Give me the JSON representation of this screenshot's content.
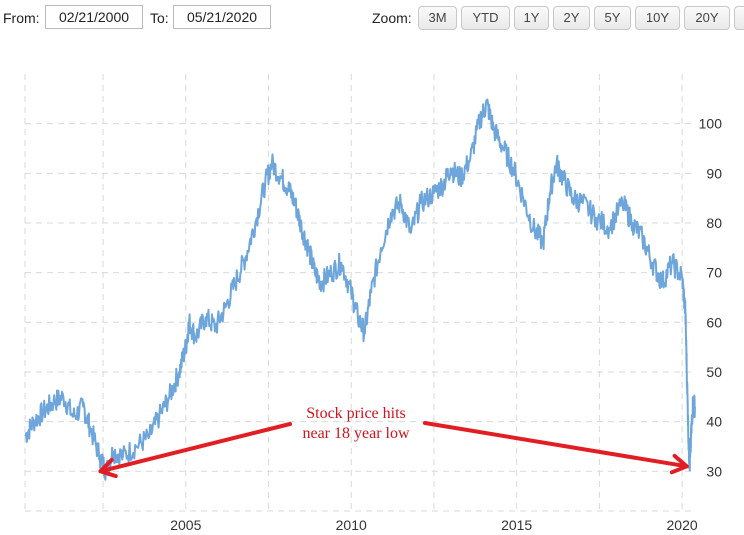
{
  "toolbar": {
    "from_label": "From:",
    "from_value": "02/21/2000",
    "to_label": "To:",
    "to_value": "05/21/2020",
    "zoom_label": "Zoom:",
    "zoom_buttons": [
      "3M",
      "YTD",
      "1Y",
      "2Y",
      "5Y",
      "10Y",
      "20Y"
    ]
  },
  "colors": {
    "series": "#6ea6dc",
    "grid": "#d9d9d9",
    "annotation": "#e21d23"
  },
  "chart_data": {
    "type": "line",
    "title": "",
    "xlabel": "",
    "ylabel": "",
    "xlim": [
      2000.14,
      2020.39
    ],
    "ylim": [
      22,
      110
    ],
    "x_ticks": [
      2005,
      2010,
      2015,
      2020
    ],
    "y_ticks": [
      30,
      40,
      50,
      60,
      70,
      80,
      90,
      100
    ],
    "grid": true,
    "series": [
      {
        "name": "",
        "points": [
          [
            2000.14,
            37
          ],
          [
            2000.4,
            40
          ],
          [
            2000.7,
            42
          ],
          [
            2001.0,
            44
          ],
          [
            2001.3,
            45
          ],
          [
            2001.6,
            41
          ],
          [
            2001.9,
            43
          ],
          [
            2002.1,
            39
          ],
          [
            2002.4,
            33
          ],
          [
            2002.6,
            30
          ],
          [
            2002.8,
            34
          ],
          [
            2003.1,
            33
          ],
          [
            2003.5,
            35
          ],
          [
            2003.9,
            37
          ],
          [
            2004.2,
            41
          ],
          [
            2004.5,
            45
          ],
          [
            2004.8,
            50
          ],
          [
            2005.0,
            55
          ],
          [
            2005.1,
            60
          ],
          [
            2005.3,
            57
          ],
          [
            2005.6,
            61
          ],
          [
            2005.9,
            59
          ],
          [
            2006.2,
            63
          ],
          [
            2006.5,
            68
          ],
          [
            2006.8,
            73
          ],
          [
            2007.1,
            80
          ],
          [
            2007.4,
            88
          ],
          [
            2007.6,
            92
          ],
          [
            2007.9,
            89
          ],
          [
            2008.1,
            87
          ],
          [
            2008.3,
            84
          ],
          [
            2008.5,
            79
          ],
          [
            2008.7,
            75
          ],
          [
            2008.9,
            70
          ],
          [
            2009.1,
            68
          ],
          [
            2009.4,
            70
          ],
          [
            2009.7,
            72
          ],
          [
            2010.0,
            66
          ],
          [
            2010.2,
            61
          ],
          [
            2010.4,
            58
          ],
          [
            2010.6,
            66
          ],
          [
            2010.9,
            75
          ],
          [
            2011.2,
            82
          ],
          [
            2011.5,
            84
          ],
          [
            2011.8,
            78
          ],
          [
            2012.1,
            84
          ],
          [
            2012.5,
            86
          ],
          [
            2012.8,
            88
          ],
          [
            2013.0,
            91
          ],
          [
            2013.3,
            89
          ],
          [
            2013.6,
            93
          ],
          [
            2013.9,
            101
          ],
          [
            2014.1,
            104
          ],
          [
            2014.3,
            99
          ],
          [
            2014.6,
            95
          ],
          [
            2014.9,
            91
          ],
          [
            2015.2,
            85
          ],
          [
            2015.5,
            79
          ],
          [
            2015.8,
            76
          ],
          [
            2016.0,
            86
          ],
          [
            2016.2,
            92
          ],
          [
            2016.4,
            89
          ],
          [
            2016.7,
            85
          ],
          [
            2017.0,
            84
          ],
          [
            2017.4,
            81
          ],
          [
            2017.8,
            79
          ],
          [
            2018.2,
            84
          ],
          [
            2018.5,
            80
          ],
          [
            2018.8,
            77
          ],
          [
            2019.1,
            72
          ],
          [
            2019.4,
            68
          ],
          [
            2019.7,
            72
          ],
          [
            2020.0,
            69
          ],
          [
            2020.1,
            62
          ],
          [
            2020.15,
            48
          ],
          [
            2020.2,
            35
          ],
          [
            2020.23,
            31
          ],
          [
            2020.28,
            38
          ],
          [
            2020.33,
            44
          ],
          [
            2020.39,
            43
          ]
        ]
      }
    ],
    "annotations": [
      {
        "text_lines": [
          "Stock price hits",
          "near 18 year low"
        ],
        "arrow_targets": [
          [
            2002.3,
            30
          ],
          [
            2020.2,
            31
          ]
        ]
      }
    ]
  }
}
